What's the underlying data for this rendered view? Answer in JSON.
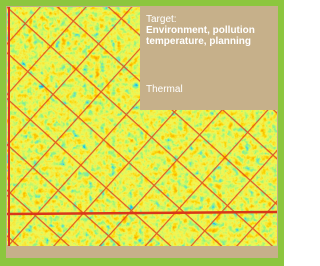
{
  "text": {
    "heading": "Target:",
    "lines": [
      "Environment, pollution",
      "temperature, planning"
    ],
    "label": "Thermal"
  }
}
